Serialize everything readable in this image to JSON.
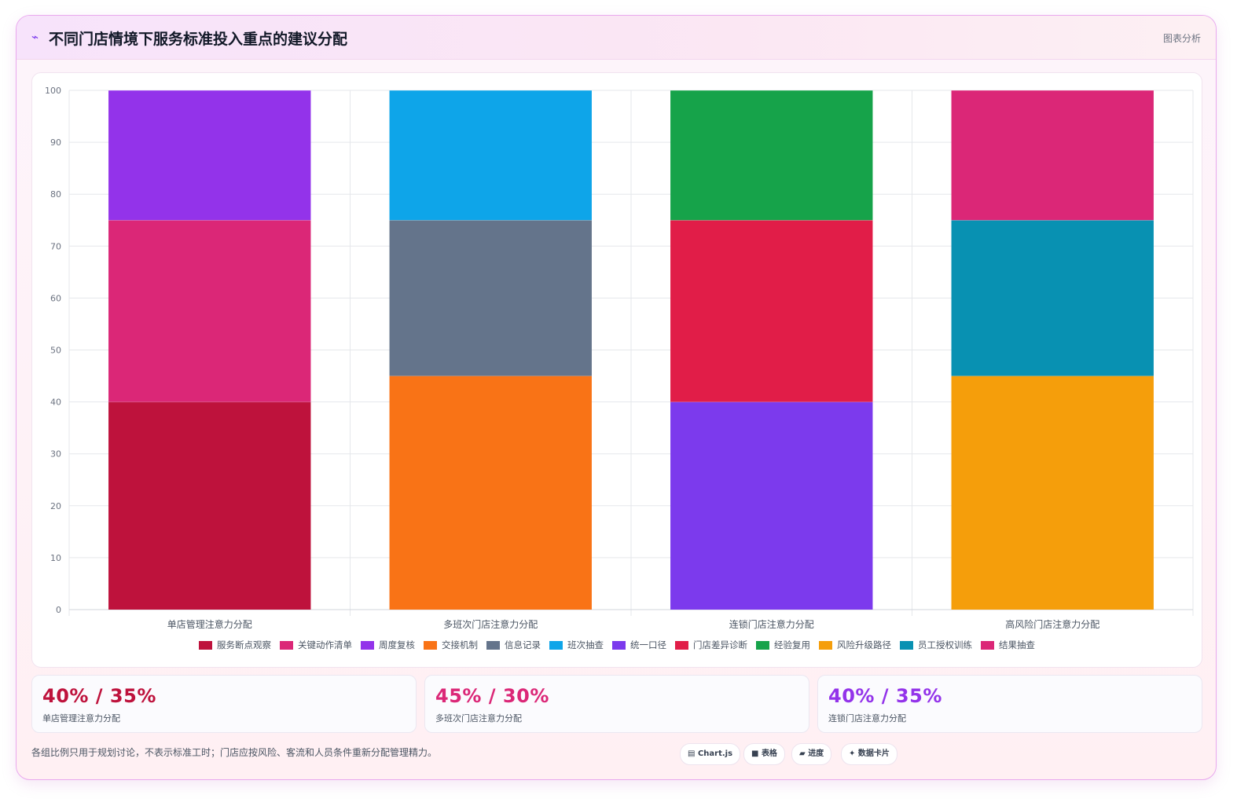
{
  "header": {
    "icon": "trend-icon",
    "title": "不同门店情境下服务标准投入重点的建议分配",
    "link": "图表分析"
  },
  "chart_data": {
    "type": "bar",
    "stacked": true,
    "ylim": [
      0,
      100
    ],
    "yticks": [
      "0",
      "10",
      "20",
      "30",
      "40",
      "50",
      "60",
      "70",
      "80",
      "90",
      "100"
    ],
    "grid": true,
    "legend_position": "bottom",
    "categories": [
      "单店管理注意力分配",
      "多班次门店注意力分配",
      "连锁门店注意力分配",
      "高风险门店注意力分配"
    ],
    "series": [
      {
        "name": "服务断点观察",
        "color": "#be123c",
        "values": [
          40,
          0,
          0,
          0
        ]
      },
      {
        "name": "关键动作清单",
        "color": "#db2777",
        "values": [
          35,
          0,
          0,
          0
        ]
      },
      {
        "name": "周度复核",
        "color": "#9333ea",
        "values": [
          25,
          0,
          0,
          0
        ]
      },
      {
        "name": "交接机制",
        "color": "#f97316",
        "values": [
          0,
          45,
          0,
          0
        ]
      },
      {
        "name": "信息记录",
        "color": "#64748b",
        "values": [
          0,
          30,
          0,
          0
        ]
      },
      {
        "name": "班次抽查",
        "color": "#0ea5e9",
        "values": [
          0,
          25,
          0,
          0
        ]
      },
      {
        "name": "统一口径",
        "color": "#7c3aed",
        "values": [
          0,
          0,
          40,
          0
        ]
      },
      {
        "name": "门店差异诊断",
        "color": "#e11d48",
        "values": [
          0,
          0,
          35,
          0
        ]
      },
      {
        "name": "经验复用",
        "color": "#16a34a",
        "values": [
          0,
          0,
          25,
          0
        ]
      },
      {
        "name": "风险升级路径",
        "color": "#f59e0b",
        "values": [
          0,
          0,
          0,
          45
        ]
      },
      {
        "name": "员工授权训练",
        "color": "#0891b2",
        "values": [
          0,
          0,
          0,
          30
        ]
      },
      {
        "name": "结果抽查",
        "color": "#db2777",
        "values": [
          0,
          0,
          0,
          25
        ]
      }
    ]
  },
  "stats": [
    {
      "value": "40% / 35%",
      "label": "单店管理注意力分配",
      "color": "#be123c"
    },
    {
      "value": "45% / 30%",
      "label": "多班次门店注意力分配",
      "color": "#db2777"
    },
    {
      "value": "40% / 35%",
      "label": "连锁门店注意力分配",
      "color": "#9333ea"
    }
  ],
  "footnote": "各组比例只用于规划讨论，不表示标准工时；门店应按风险、客流和人员条件重新分配管理精力。",
  "chips": [
    {
      "icon": "chart-icon",
      "label": "Chart.js"
    },
    {
      "icon": "table-icon",
      "label": "表格"
    },
    {
      "icon": "progress-icon",
      "label": "进度"
    },
    {
      "icon": "sparkle-icon",
      "label": "数据卡片"
    }
  ]
}
